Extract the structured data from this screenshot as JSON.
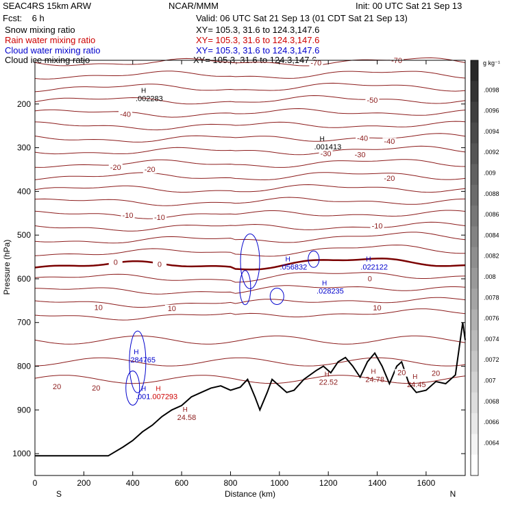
{
  "header": {
    "model": "SEAC4RS 15km ARW",
    "center": "NCAR/MMM",
    "init": "Init: 00 UTC Sat 21 Sep 13",
    "fcst": "Fcst:    6 h",
    "valid": "Valid: 06 UTC Sat 21 Sep 13 (01 CDT Sat 21 Sep 13)"
  },
  "legend": [
    {
      "name": "Snow mixing ratio",
      "xy": "XY= 105.3, 31.6 to 124.3,147.6",
      "color": "#000000"
    },
    {
      "name": "Rain water mixing ratio",
      "xy": "XY= 105.3, 31.6 to 124.3,147.6",
      "color": "#cc0000"
    },
    {
      "name": "Cloud water mixing ratio",
      "xy": "XY= 105.3, 31.6 to 124.3,147.6",
      "color": "#0000cc"
    },
    {
      "name": "Cloud ice mixing ratio",
      "xy": "XY= 105.3, 31.6 to 124.3,147.6",
      "color": "#000000"
    }
  ],
  "chart_data": {
    "type": "contour-cross-section",
    "xlabel": "Distance (km)",
    "ylabel": "Pressure (hPa)",
    "xlim": [
      0,
      1760
    ],
    "ylim": [
      1050,
      100
    ],
    "x_ticks": [
      0,
      200,
      400,
      600,
      800,
      1000,
      1200,
      1400,
      1600
    ],
    "y_ticks": [
      200,
      300,
      400,
      500,
      600,
      700,
      800,
      900,
      1000
    ],
    "x_end_labels": {
      "left": "S",
      "right": "N"
    },
    "colorbar": {
      "unit": "g kg⁻¹",
      "labels": [
        ".0098",
        ".0096",
        ".0094",
        ".0092",
        ".009",
        ".0088",
        ".0086",
        ".0084",
        ".0082",
        ".008",
        ".0078",
        ".0076",
        ".0074",
        ".0072",
        ".007",
        ".0068",
        ".0066",
        ".0064"
      ]
    },
    "contour_labels": [
      {
        "text": "-70",
        "x": 1150,
        "p": 110
      },
      {
        "text": "-70",
        "x": 1480,
        "p": 105
      },
      {
        "text": "-50",
        "x": 1380,
        "p": 196
      },
      {
        "text": "-40",
        "x": 370,
        "p": 228
      },
      {
        "text": "-40",
        "x": 1340,
        "p": 283
      },
      {
        "text": "-40",
        "x": 1450,
        "p": 290
      },
      {
        "text": "-30",
        "x": 1190,
        "p": 318
      },
      {
        "text": "-30",
        "x": 1330,
        "p": 320
      },
      {
        "text": "-20",
        "x": 330,
        "p": 349
      },
      {
        "text": "-20",
        "x": 470,
        "p": 354
      },
      {
        "text": "-20",
        "x": 1450,
        "p": 374
      },
      {
        "text": "-10",
        "x": 380,
        "p": 459
      },
      {
        "text": "-10",
        "x": 510,
        "p": 464
      },
      {
        "text": "-10",
        "x": 1400,
        "p": 483
      },
      {
        "text": "0",
        "x": 330,
        "p": 566
      },
      {
        "text": "0",
        "x": 510,
        "p": 571
      },
      {
        "text": "0",
        "x": 1370,
        "p": 604
      },
      {
        "text": "10",
        "x": 260,
        "p": 670
      },
      {
        "text": "10",
        "x": 560,
        "p": 672
      },
      {
        "text": "10",
        "x": 1400,
        "p": 671
      },
      {
        "text": "20",
        "x": 90,
        "p": 851
      },
      {
        "text": "20",
        "x": 250,
        "p": 854
      },
      {
        "text": "20",
        "x": 1500,
        "p": 819
      },
      {
        "text": "20",
        "x": 1640,
        "p": 820
      }
    ],
    "maxima_labels": [
      {
        "field": "snow",
        "text": ".002283",
        "x": 440,
        "p": 190
      },
      {
        "field": "snow",
        "text": ".001413",
        "x": 1170,
        "p": 301
      },
      {
        "field": "cloud_water",
        "text": ".056832",
        "x": 1030,
        "p": 576
      },
      {
        "field": "cloud_water",
        "text": ".022122",
        "x": 1360,
        "p": 576
      },
      {
        "field": "cloud_water",
        "text": ".028235",
        "x": 1180,
        "p": 631
      },
      {
        "field": "cloud_water",
        "text": ".284765",
        "x": 410,
        "p": 788
      },
      {
        "field": "cloud_water",
        "text": ".001",
        "x": 440,
        "p": 872
      },
      {
        "field": "cloud_ice",
        "text": ".007293",
        "x": 500,
        "p": 872
      },
      {
        "field": "temperature",
        "text": "24.58",
        "x": 610,
        "p": 920
      },
      {
        "field": "temperature",
        "text": "22.52",
        "x": 1190,
        "p": 839
      },
      {
        "field": "temperature",
        "text": "24.78",
        "x": 1380,
        "p": 833
      },
      {
        "field": "temperature",
        "text": "24.45",
        "x": 1550,
        "p": 845
      }
    ],
    "terrain": [
      [
        0,
        1005
      ],
      [
        300,
        1005
      ],
      [
        360,
        985
      ],
      [
        400,
        970
      ],
      [
        440,
        950
      ],
      [
        480,
        935
      ],
      [
        520,
        915
      ],
      [
        560,
        900
      ],
      [
        600,
        890
      ],
      [
        640,
        870
      ],
      [
        680,
        860
      ],
      [
        720,
        850
      ],
      [
        760,
        845
      ],
      [
        800,
        855
      ],
      [
        840,
        848
      ],
      [
        870,
        830
      ],
      [
        900,
        870
      ],
      [
        920,
        900
      ],
      [
        950,
        860
      ],
      [
        970,
        830
      ],
      [
        1000,
        845
      ],
      [
        1030,
        860
      ],
      [
        1060,
        855
      ],
      [
        1100,
        830
      ],
      [
        1150,
        810
      ],
      [
        1180,
        800
      ],
      [
        1210,
        815
      ],
      [
        1240,
        790
      ],
      [
        1270,
        780
      ],
      [
        1300,
        800
      ],
      [
        1330,
        825
      ],
      [
        1360,
        790
      ],
      [
        1390,
        770
      ],
      [
        1420,
        800
      ],
      [
        1450,
        840
      ],
      [
        1480,
        800
      ],
      [
        1500,
        790
      ],
      [
        1530,
        840
      ],
      [
        1560,
        860
      ],
      [
        1600,
        855
      ],
      [
        1640,
        835
      ],
      [
        1680,
        840
      ],
      [
        1720,
        820
      ],
      [
        1750,
        700
      ],
      [
        1760,
        740
      ]
    ]
  }
}
